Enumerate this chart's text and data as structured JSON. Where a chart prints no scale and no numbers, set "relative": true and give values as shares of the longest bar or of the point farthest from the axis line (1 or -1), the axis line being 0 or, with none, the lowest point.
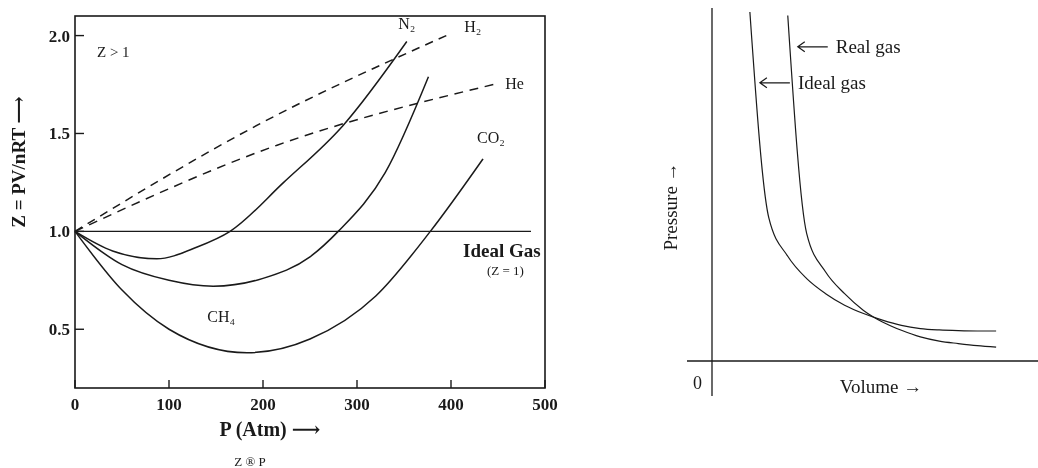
{
  "chart_data": [
    {
      "type": "line",
      "xlabel": "P (Atm) ⟶",
      "ylabel": "Z = PV/nRT ⟶",
      "xlim": [
        0,
        500
      ],
      "ylim": [
        0.2,
        2.1
      ],
      "xticks": [
        0,
        100,
        200,
        300,
        400,
        500
      ],
      "yticks": [
        {
          "value": 0.5,
          "label": "0.5"
        },
        {
          "value": 1,
          "label": "1.0"
        },
        {
          "value": 1.5,
          "label": "1.5"
        },
        {
          "value": 2,
          "label": "2.0"
        }
      ],
      "ref_lines": [
        {
          "axis": "y",
          "value": 1,
          "label": "Ideal Gas",
          "color": "#1a1a1a"
        }
      ],
      "annotations": [
        "Z > 1",
        "(Z = 1)",
        "Z ® P"
      ],
      "series": [
        {
          "name": "N₂",
          "color": "#1a1a1a",
          "line_style": "solid",
          "x": [
            0,
            40,
            87,
            130,
            165,
            222,
            285,
            353
          ],
          "values": [
            1,
            0.9,
            0.86,
            0.92,
            1,
            1.25,
            1.54,
            1.97
          ]
        },
        {
          "name": "H₂",
          "color": "#1a1a1a",
          "line_style": "dashed",
          "x": [
            0,
            197,
            395
          ],
          "values": [
            1,
            1.55,
            2
          ]
        },
        {
          "name": "He",
          "color": "#1a1a1a",
          "line_style": "dashed",
          "x": [
            0,
            215,
            445
          ],
          "values": [
            1,
            1.44,
            1.75
          ]
        },
        {
          "name": "CH₄",
          "color": "#1a1a1a",
          "line_style": "solid",
          "x": [
            0,
            50,
            100,
            147,
            200,
            250,
            280,
            330,
            376
          ],
          "values": [
            1,
            0.83,
            0.75,
            0.72,
            0.76,
            0.87,
            1,
            1.3,
            1.79
          ]
        },
        {
          "name": "CO₂",
          "color": "#1a1a1a",
          "line_style": "solid",
          "x": [
            0,
            50,
            100,
            183,
            250,
            320,
            378,
            434
          ],
          "values": [
            1,
            0.7,
            0.5,
            0.38,
            0.45,
            0.67,
            1,
            1.37
          ]
        }
      ]
    },
    {
      "type": "line",
      "relative": true,
      "legend": "top",
      "xlabel": "Volume →",
      "ylabel": "Pressure →",
      "annotations": [
        "0"
      ],
      "categories": [
        null,
        null,
        null,
        null,
        null,
        null,
        null,
        null,
        null,
        null,
        null,
        null,
        null,
        null,
        null,
        null,
        null,
        null
      ],
      "series": [
        {
          "name": "Ideal gas",
          "color": "#1a1a1a",
          "values": [
            null,
            null,
            1,
            0.41,
            0.3,
            0.236,
            0.193,
            0.16,
            0.136,
            0.117,
            0.102,
            0.093,
            0.089,
            0.087,
            0.086,
            0.086,
            null,
            null
          ]
        },
        {
          "name": "Real gas",
          "color": "#1a1a1a",
          "values": [
            null,
            null,
            null,
            null,
            0.99,
            0.365,
            0.255,
            0.193,
            0.145,
            0.112,
            0.088,
            0.069,
            0.057,
            0.05,
            0.044,
            0.04,
            null,
            null
          ]
        }
      ]
    }
  ]
}
